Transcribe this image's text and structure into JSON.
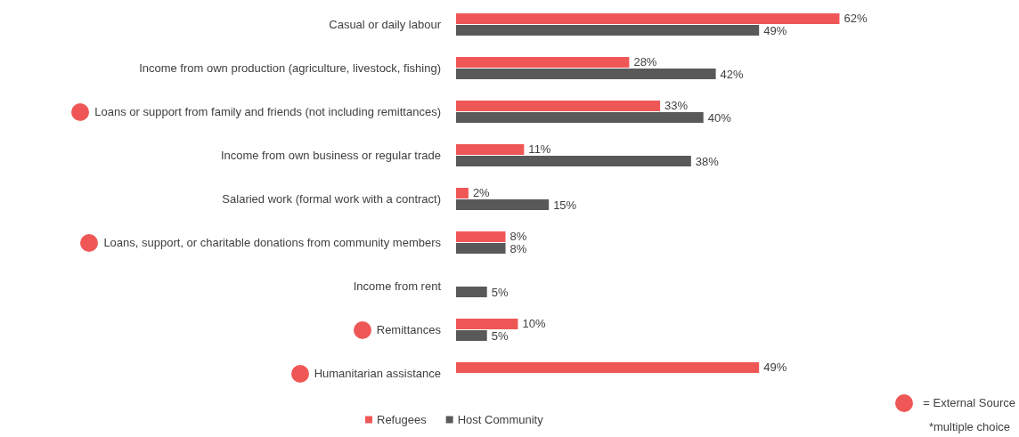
{
  "chart_data": {
    "type": "bar",
    "orientation": "horizontal",
    "categories": [
      "Casual or daily labour",
      "Income from own production (agriculture, livestock, fishing)",
      "Loans or support from family and friends (not including remittances)",
      "Income from own business or regular trade",
      "Salaried work (formal work with a contract)",
      "Loans, support, or charitable donations from community members",
      "Income from rent",
      "Remittances",
      "Humanitarian assistance"
    ],
    "series": [
      {
        "name": "Refugees",
        "color": "#ef5757",
        "values": [
          62,
          28,
          33,
          11,
          2,
          8,
          null,
          10,
          49
        ],
        "value_labels": [
          "62%",
          "28%",
          "33%",
          "11%",
          "2%",
          "8%",
          null,
          "10%",
          "49%"
        ]
      },
      {
        "name": "Host Community",
        "color": "#595959",
        "values": [
          49,
          42,
          40,
          38,
          15,
          8,
          5,
          5,
          0
        ],
        "value_labels": [
          "49%",
          "42%",
          "40%",
          "38%",
          "15%",
          "8%",
          "5%",
          "5%",
          null
        ]
      }
    ],
    "legend": "bottom",
    "grid": false,
    "annotations": [
      "= External Source",
      "*multiple choice"
    ]
  }
}
